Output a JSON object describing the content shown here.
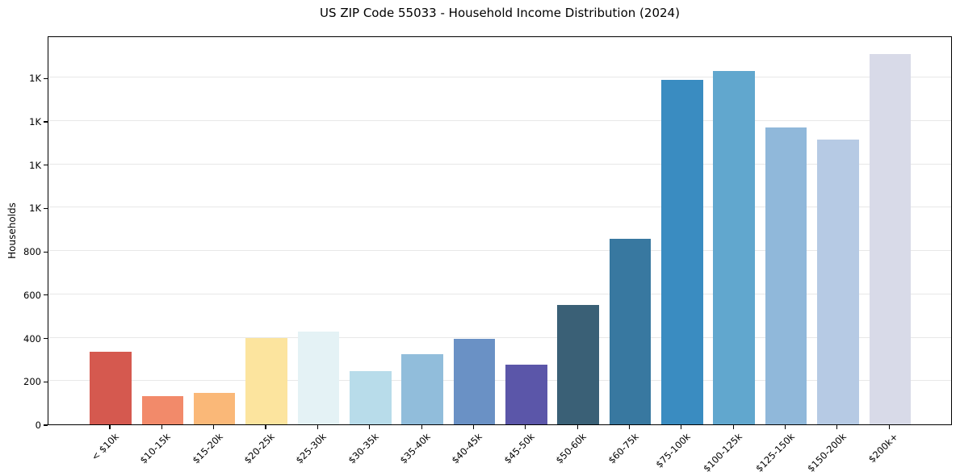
{
  "chart_data": {
    "type": "bar",
    "title": "US ZIP Code 55033 - Household Income Distribution (2024)",
    "xlabel": "",
    "ylabel": "Households",
    "categories": [
      "< $10k",
      "$10-15k",
      "$15-20k",
      "$20-25k",
      "$25-30k",
      "$30-35k",
      "$35-40k",
      "$40-45k",
      "$45-50k",
      "$50-60k",
      "$60-75k",
      "$75-100k",
      "$100-125k",
      "$125-150k",
      "$150-200k",
      "$200k+"
    ],
    "values": [
      335,
      130,
      145,
      400,
      430,
      245,
      325,
      395,
      275,
      550,
      855,
      1590,
      1630,
      1370,
      1315,
      1710
    ],
    "bar_colors": [
      "#d5594f",
      "#f28a6a",
      "#fab878",
      "#fce49e",
      "#e4f2f5",
      "#b8dcea",
      "#91bddb",
      "#6a91c5",
      "#5b56a9",
      "#3a6076",
      "#3878a0",
      "#3a8cc1",
      "#61a7ce",
      "#90b8da",
      "#b6cae4",
      "#d8dae8"
    ],
    "ylim": [
      0,
      1795
    ],
    "yticks": [
      {
        "value": 0,
        "label": "0"
      },
      {
        "value": 200,
        "label": "200"
      },
      {
        "value": 400,
        "label": "400"
      },
      {
        "value": 600,
        "label": "600"
      },
      {
        "value": 800,
        "label": "800"
      },
      {
        "value": 1000,
        "label": "1K"
      },
      {
        "value": 1200,
        "label": "1K"
      },
      {
        "value": 1400,
        "label": "1K"
      },
      {
        "value": 1600,
        "label": "1K"
      }
    ],
    "grid": "horizontal",
    "gridline_color": "#e8e8e8",
    "background_color": "#ffffff",
    "legend": "none"
  }
}
